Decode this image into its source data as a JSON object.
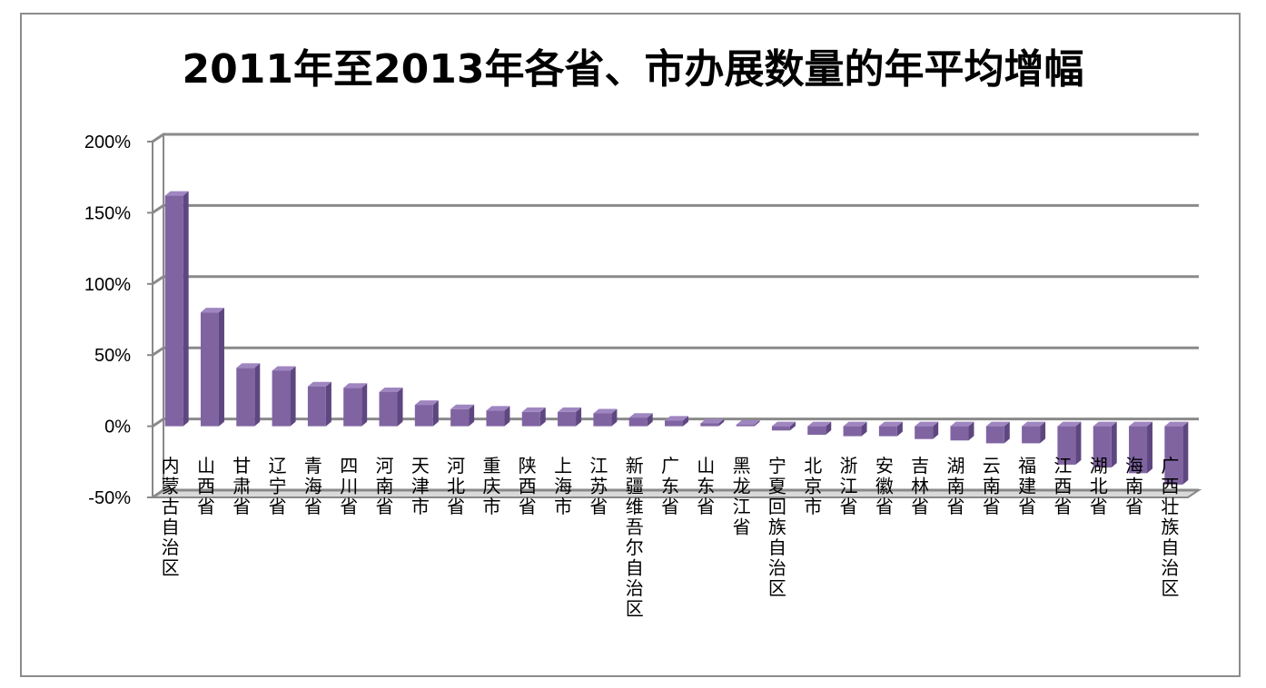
{
  "chart_data": {
    "type": "bar",
    "title": "2011年至2013年各省、市办展数量的年平均增幅",
    "xlabel": "",
    "ylabel": "",
    "ylim": [
      -50,
      200
    ],
    "yticks": [
      200,
      150,
      100,
      50,
      0,
      -50
    ],
    "ytick_labels": [
      "200%",
      "150%",
      "100%",
      "50%",
      "0%",
      "-50%"
    ],
    "grid": true,
    "legend": "none",
    "bar_color": "#8064a2",
    "categories": [
      "内蒙古自治区",
      "山西省",
      "甘肃省",
      "辽宁省",
      "青海省",
      "四川省",
      "河南省",
      "天津市",
      "河北省",
      "重庆市",
      "陕西省",
      "上海市",
      "江苏省",
      "新疆维吾尔自治区",
      "广东省",
      "山东省",
      "黑龙江省",
      "宁夏回族自治区",
      "北京市",
      "浙江省",
      "安徽省",
      "吉林省",
      "湖南省",
      "云南省",
      "福建省",
      "江西省",
      "湖北省",
      "海南省",
      "广西壮族自治区"
    ],
    "values": [
      162,
      80,
      41,
      39,
      28,
      27,
      24,
      15,
      12,
      11,
      10,
      10,
      9,
      6,
      4,
      2,
      1,
      -3,
      -6,
      -7,
      -7,
      -9,
      -10,
      -12,
      -12,
      -27,
      -29,
      -33,
      -41
    ]
  }
}
